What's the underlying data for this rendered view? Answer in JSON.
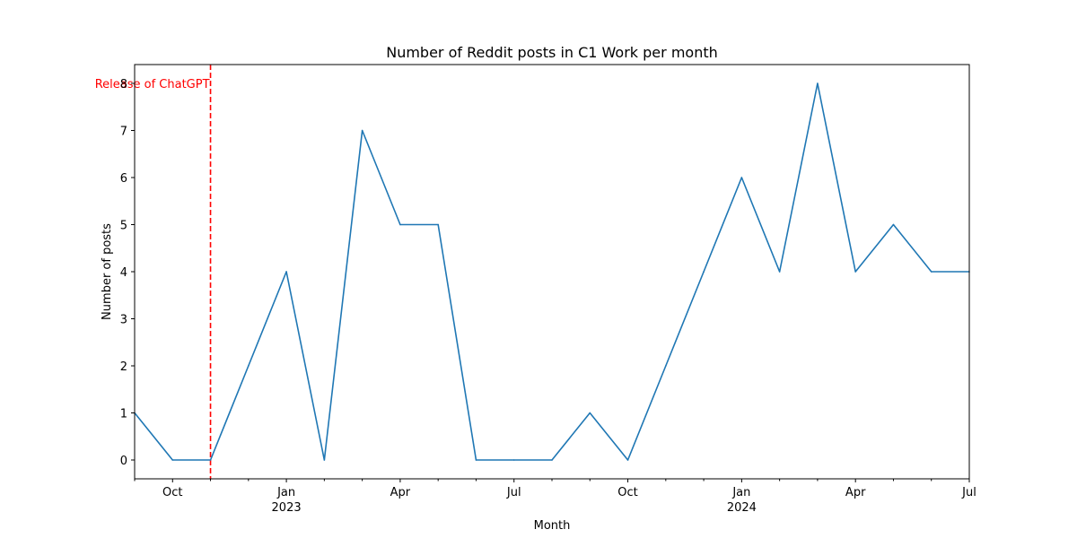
{
  "chart_data": {
    "type": "line",
    "title": "Number of Reddit posts in C1 Work per month",
    "xlabel": "Month",
    "ylabel": "Number of posts",
    "ylim": [
      -0.4,
      8.4
    ],
    "xlim": [
      "2022-09",
      "2024-07"
    ],
    "yticks": [
      0,
      1,
      2,
      3,
      4,
      5,
      6,
      7,
      8
    ],
    "xticks": [
      {
        "month": "2022-10",
        "label": "Oct",
        "sublabel": ""
      },
      {
        "month": "2023-01",
        "label": "Jan",
        "sublabel": "2023"
      },
      {
        "month": "2023-04",
        "label": "Apr",
        "sublabel": ""
      },
      {
        "month": "2023-07",
        "label": "Jul",
        "sublabel": ""
      },
      {
        "month": "2023-10",
        "label": "Oct",
        "sublabel": ""
      },
      {
        "month": "2024-01",
        "label": "Jan",
        "sublabel": "2024"
      },
      {
        "month": "2024-04",
        "label": "Apr",
        "sublabel": ""
      },
      {
        "month": "2024-07",
        "label": "Jul",
        "sublabel": ""
      }
    ],
    "grid": false,
    "legend": "none",
    "series": [
      {
        "color": "#1f77b4",
        "x": [
          "2022-09",
          "2022-10",
          "2022-11",
          "2022-12",
          "2023-01",
          "2023-02",
          "2023-03",
          "2023-04",
          "2023-05",
          "2023-06",
          "2023-07",
          "2023-08",
          "2023-09",
          "2023-10",
          "2023-11",
          "2023-12",
          "2024-01",
          "2024-02",
          "2024-03",
          "2024-04",
          "2024-05",
          "2024-06",
          "2024-07"
        ],
        "values": [
          1,
          0,
          0,
          2,
          4,
          0,
          7,
          5,
          5,
          0,
          0,
          0,
          1,
          0,
          2,
          4,
          6,
          4,
          8,
          4,
          5,
          4,
          4
        ]
      }
    ],
    "annotations": [
      {
        "type": "vline",
        "month": "2022-11",
        "color": "#ff0000",
        "style": "dashed",
        "label": "Release of ChatGPT",
        "label_position": "top-left"
      }
    ]
  }
}
